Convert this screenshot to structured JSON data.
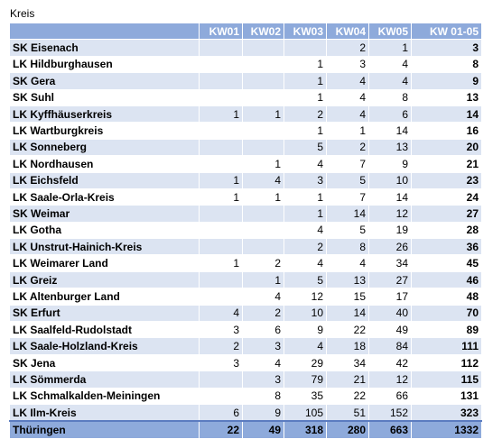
{
  "caption": "Kreis",
  "headers": [
    "",
    "KW01",
    "KW02",
    "KW03",
    "KW04",
    "KW05",
    "KW 01-05"
  ],
  "rows": [
    [
      "SK Eisenach",
      "",
      "",
      "",
      "2",
      "1",
      "3"
    ],
    [
      "LK Hildburghausen",
      "",
      "",
      "1",
      "3",
      "4",
      "8"
    ],
    [
      "SK Gera",
      "",
      "",
      "1",
      "4",
      "4",
      "9"
    ],
    [
      "SK Suhl",
      "",
      "",
      "1",
      "4",
      "8",
      "13"
    ],
    [
      "LK Kyffhäuserkreis",
      "1",
      "1",
      "2",
      "4",
      "6",
      "14"
    ],
    [
      "LK Wartburgkreis",
      "",
      "",
      "1",
      "1",
      "14",
      "16"
    ],
    [
      "LK Sonneberg",
      "",
      "",
      "5",
      "2",
      "13",
      "20"
    ],
    [
      "LK Nordhausen",
      "",
      "1",
      "4",
      "7",
      "9",
      "21"
    ],
    [
      "LK Eichsfeld",
      "1",
      "4",
      "3",
      "5",
      "10",
      "23"
    ],
    [
      "LK Saale-Orla-Kreis",
      "1",
      "1",
      "1",
      "7",
      "14",
      "24"
    ],
    [
      "SK Weimar",
      "",
      "",
      "1",
      "14",
      "12",
      "27"
    ],
    [
      "LK Gotha",
      "",
      "",
      "4",
      "5",
      "19",
      "28"
    ],
    [
      "LK Unstrut-Hainich-Kreis",
      "",
      "",
      "2",
      "8",
      "26",
      "36"
    ],
    [
      "LK Weimarer Land",
      "1",
      "2",
      "4",
      "4",
      "34",
      "45"
    ],
    [
      "LK Greiz",
      "",
      "1",
      "5",
      "13",
      "27",
      "46"
    ],
    [
      "LK Altenburger Land",
      "",
      "4",
      "12",
      "15",
      "17",
      "48"
    ],
    [
      "SK Erfurt",
      "4",
      "2",
      "10",
      "14",
      "40",
      "70"
    ],
    [
      "LK Saalfeld-Rudolstadt",
      "3",
      "6",
      "9",
      "22",
      "49",
      "89"
    ],
    [
      "LK Saale-Holzland-Kreis",
      "2",
      "3",
      "4",
      "18",
      "84",
      "111"
    ],
    [
      "SK Jena",
      "3",
      "4",
      "29",
      "34",
      "42",
      "112"
    ],
    [
      "LK Sömmerda",
      "",
      "3",
      "79",
      "21",
      "12",
      "115"
    ],
    [
      "LK Schmalkalden-Meiningen",
      "",
      "8",
      "35",
      "22",
      "66",
      "131"
    ],
    [
      "LK Ilm-Kreis",
      "6",
      "9",
      "105",
      "51",
      "152",
      "323"
    ]
  ],
  "footer": [
    "Thüringen",
    "22",
    "49",
    "318",
    "280",
    "663",
    "1332"
  ],
  "colors": {
    "header_bg": "#8eaadb",
    "stripe_bg": "#dce4f2",
    "header_text": "#ffffff"
  }
}
